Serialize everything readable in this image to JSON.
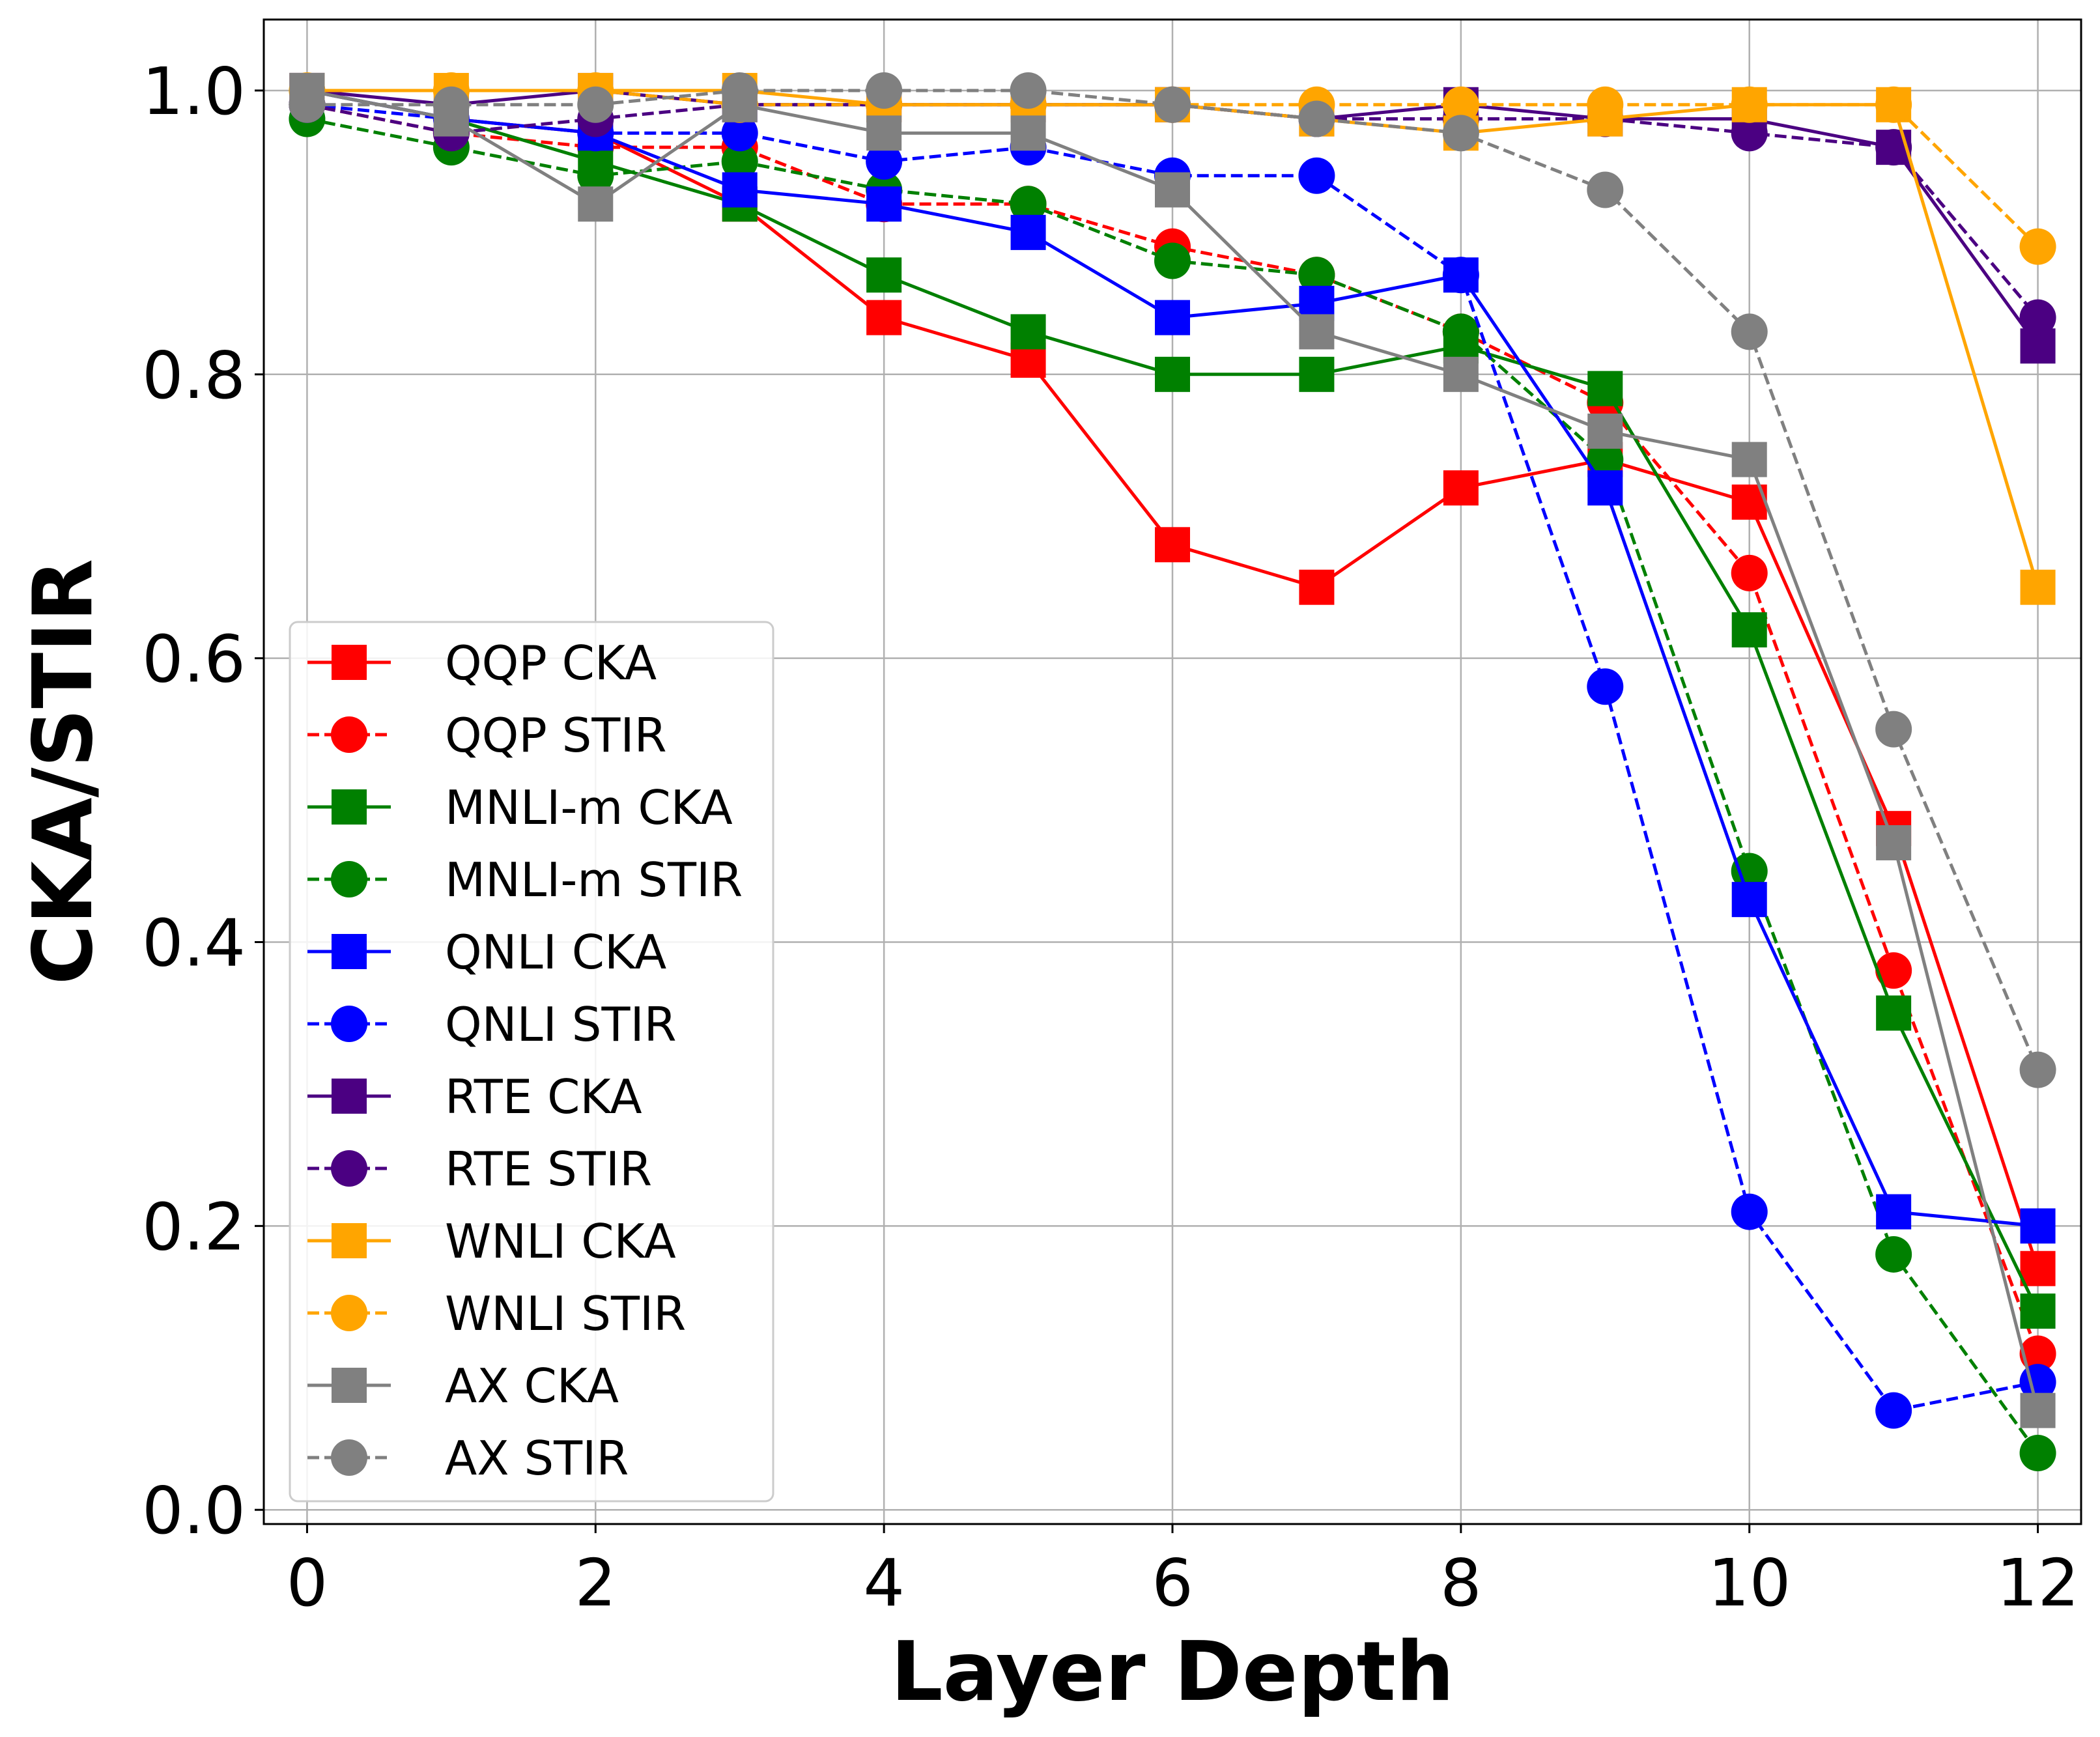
{
  "chart_data": {
    "type": "line",
    "xlabel": "Layer Depth",
    "ylabel": "CKA/STIR",
    "x": [
      0,
      1,
      2,
      3,
      4,
      5,
      6,
      7,
      8,
      9,
      10,
      11,
      12
    ],
    "xlim": [
      -0.3,
      12.3
    ],
    "ylim": [
      -0.01,
      1.05
    ],
    "xticks": [
      0,
      2,
      4,
      6,
      8,
      10,
      12
    ],
    "xtick_labels": [
      "0",
      "2",
      "4",
      "6",
      "8",
      "10",
      "12"
    ],
    "yticks": [
      0.0,
      0.2,
      0.4,
      0.6,
      0.8,
      1.0
    ],
    "ytick_labels": [
      "0.0",
      "0.2",
      "0.4",
      "0.6",
      "0.8",
      "1.0"
    ],
    "grid": true,
    "legend_position": "lower-left",
    "series": [
      {
        "name": "QQP CKA",
        "color": "#ff0000",
        "linestyle": "solid",
        "marker": "square",
        "values": [
          1.0,
          0.98,
          0.97,
          0.92,
          0.84,
          0.81,
          0.68,
          0.65,
          0.72,
          0.74,
          0.71,
          0.48,
          0.17
        ]
      },
      {
        "name": "QQP STIR",
        "color": "#ff0000",
        "linestyle": "dashed",
        "marker": "circle",
        "values": [
          0.99,
          0.97,
          0.96,
          0.96,
          0.92,
          0.92,
          0.89,
          0.87,
          0.83,
          0.78,
          0.66,
          0.38,
          0.11
        ]
      },
      {
        "name": "MNLI-m CKA",
        "color": "#008000",
        "linestyle": "solid",
        "marker": "square",
        "values": [
          1.0,
          0.98,
          0.95,
          0.92,
          0.87,
          0.83,
          0.8,
          0.8,
          0.82,
          0.79,
          0.62,
          0.35,
          0.14
        ]
      },
      {
        "name": "MNLI-m STIR",
        "color": "#008000",
        "linestyle": "dashed",
        "marker": "circle",
        "values": [
          0.98,
          0.96,
          0.94,
          0.95,
          0.93,
          0.92,
          0.88,
          0.87,
          0.83,
          0.74,
          0.45,
          0.18,
          0.04
        ]
      },
      {
        "name": "QNLI CKA",
        "color": "#0000ff",
        "linestyle": "solid",
        "marker": "square",
        "values": [
          1.0,
          0.98,
          0.97,
          0.93,
          0.92,
          0.9,
          0.84,
          0.85,
          0.87,
          0.72,
          0.43,
          0.21,
          0.2
        ]
      },
      {
        "name": "QNLI STIR",
        "color": "#0000ff",
        "linestyle": "dashed",
        "marker": "circle",
        "values": [
          0.99,
          0.98,
          0.97,
          0.97,
          0.95,
          0.96,
          0.94,
          0.94,
          0.87,
          0.58,
          0.21,
          0.07,
          0.09
        ]
      },
      {
        "name": "RTE CKA",
        "color": "#4b0082",
        "linestyle": "solid",
        "marker": "square",
        "values": [
          1.0,
          0.99,
          1.0,
          0.99,
          0.99,
          0.99,
          0.99,
          0.98,
          0.99,
          0.98,
          0.98,
          0.96,
          0.82
        ]
      },
      {
        "name": "RTE STIR",
        "color": "#4b0082",
        "linestyle": "dashed",
        "marker": "circle",
        "values": [
          0.99,
          0.97,
          0.98,
          0.99,
          0.99,
          0.99,
          0.99,
          0.98,
          0.98,
          0.98,
          0.97,
          0.96,
          0.84
        ]
      },
      {
        "name": "WNLI CKA",
        "color": "#ffa500",
        "linestyle": "solid",
        "marker": "square",
        "values": [
          1.0,
          1.0,
          1.0,
          1.0,
          0.99,
          0.99,
          0.99,
          0.98,
          0.97,
          0.98,
          0.99,
          0.99,
          0.65
        ]
      },
      {
        "name": "WNLI STIR",
        "color": "#ffa500",
        "linestyle": "dashed",
        "marker": "circle",
        "values": [
          1.0,
          1.0,
          1.0,
          0.99,
          0.99,
          0.99,
          0.99,
          0.99,
          0.99,
          0.99,
          0.99,
          0.99,
          0.89
        ]
      },
      {
        "name": "AX CKA",
        "color": "#808080",
        "linestyle": "solid",
        "marker": "square",
        "values": [
          1.0,
          0.98,
          0.92,
          0.99,
          0.97,
          0.97,
          0.93,
          0.83,
          0.8,
          0.76,
          0.74,
          0.47,
          0.07
        ]
      },
      {
        "name": "AX STIR",
        "color": "#808080",
        "linestyle": "dashed",
        "marker": "circle",
        "values": [
          0.99,
          0.99,
          0.99,
          1.0,
          1.0,
          1.0,
          0.99,
          0.98,
          0.97,
          0.93,
          0.83,
          0.55,
          0.31
        ]
      }
    ]
  }
}
